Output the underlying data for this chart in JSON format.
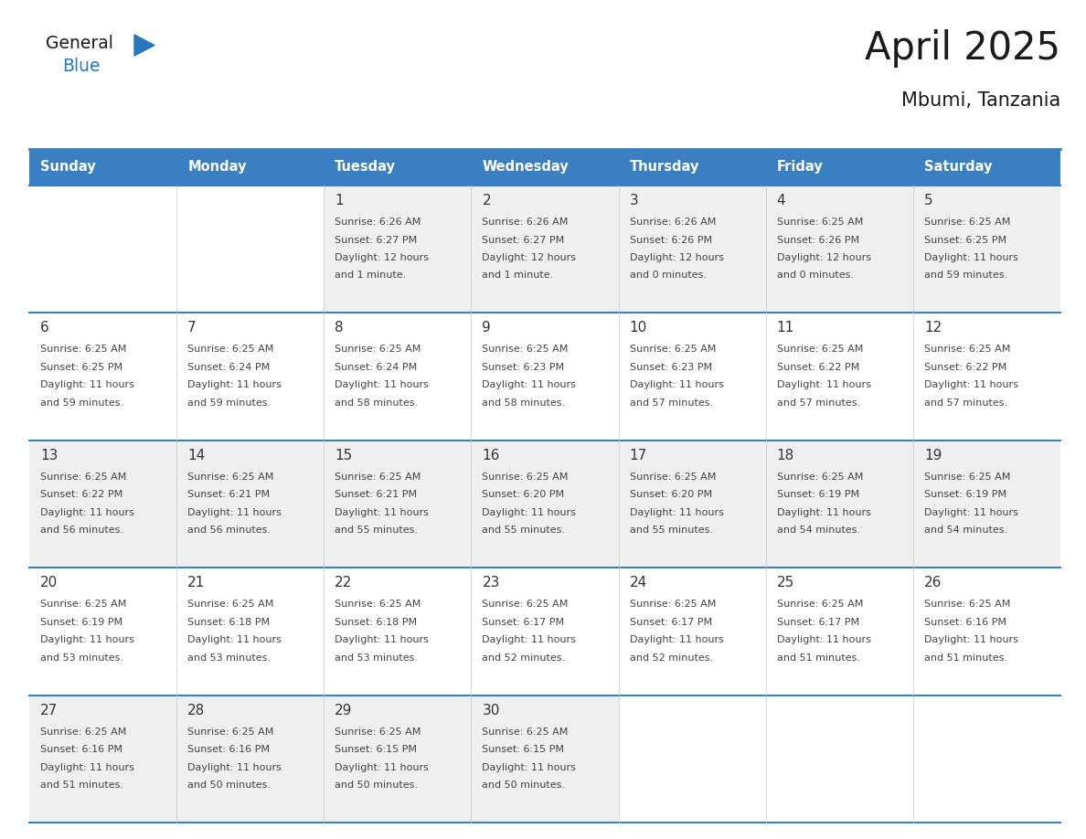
{
  "title": "April 2025",
  "subtitle": "Mbumi, Tanzania",
  "days_of_week": [
    "Sunday",
    "Monday",
    "Tuesday",
    "Wednesday",
    "Thursday",
    "Friday",
    "Saturday"
  ],
  "header_bg": "#3A7FC1",
  "header_text": "#FFFFFF",
  "cell_bg_white": "#FFFFFF",
  "cell_bg_gray": "#EFEFEF",
  "border_color": "#3A7FC1",
  "text_color": "#444444",
  "day_num_color": "#333333",
  "calendar_data": [
    [
      {
        "day": null,
        "sunrise": null,
        "sunset": null,
        "daylight_line1": null,
        "daylight_line2": null
      },
      {
        "day": null,
        "sunrise": null,
        "sunset": null,
        "daylight_line1": null,
        "daylight_line2": null
      },
      {
        "day": 1,
        "sunrise": "6:26 AM",
        "sunset": "6:27 PM",
        "daylight_line1": "Daylight: 12 hours",
        "daylight_line2": "and 1 minute."
      },
      {
        "day": 2,
        "sunrise": "6:26 AM",
        "sunset": "6:27 PM",
        "daylight_line1": "Daylight: 12 hours",
        "daylight_line2": "and 1 minute."
      },
      {
        "day": 3,
        "sunrise": "6:26 AM",
        "sunset": "6:26 PM",
        "daylight_line1": "Daylight: 12 hours",
        "daylight_line2": "and 0 minutes."
      },
      {
        "day": 4,
        "sunrise": "6:25 AM",
        "sunset": "6:26 PM",
        "daylight_line1": "Daylight: 12 hours",
        "daylight_line2": "and 0 minutes."
      },
      {
        "day": 5,
        "sunrise": "6:25 AM",
        "sunset": "6:25 PM",
        "daylight_line1": "Daylight: 11 hours",
        "daylight_line2": "and 59 minutes."
      }
    ],
    [
      {
        "day": 6,
        "sunrise": "6:25 AM",
        "sunset": "6:25 PM",
        "daylight_line1": "Daylight: 11 hours",
        "daylight_line2": "and 59 minutes."
      },
      {
        "day": 7,
        "sunrise": "6:25 AM",
        "sunset": "6:24 PM",
        "daylight_line1": "Daylight: 11 hours",
        "daylight_line2": "and 59 minutes."
      },
      {
        "day": 8,
        "sunrise": "6:25 AM",
        "sunset": "6:24 PM",
        "daylight_line1": "Daylight: 11 hours",
        "daylight_line2": "and 58 minutes."
      },
      {
        "day": 9,
        "sunrise": "6:25 AM",
        "sunset": "6:23 PM",
        "daylight_line1": "Daylight: 11 hours",
        "daylight_line2": "and 58 minutes."
      },
      {
        "day": 10,
        "sunrise": "6:25 AM",
        "sunset": "6:23 PM",
        "daylight_line1": "Daylight: 11 hours",
        "daylight_line2": "and 57 minutes."
      },
      {
        "day": 11,
        "sunrise": "6:25 AM",
        "sunset": "6:22 PM",
        "daylight_line1": "Daylight: 11 hours",
        "daylight_line2": "and 57 minutes."
      },
      {
        "day": 12,
        "sunrise": "6:25 AM",
        "sunset": "6:22 PM",
        "daylight_line1": "Daylight: 11 hours",
        "daylight_line2": "and 57 minutes."
      }
    ],
    [
      {
        "day": 13,
        "sunrise": "6:25 AM",
        "sunset": "6:22 PM",
        "daylight_line1": "Daylight: 11 hours",
        "daylight_line2": "and 56 minutes."
      },
      {
        "day": 14,
        "sunrise": "6:25 AM",
        "sunset": "6:21 PM",
        "daylight_line1": "Daylight: 11 hours",
        "daylight_line2": "and 56 minutes."
      },
      {
        "day": 15,
        "sunrise": "6:25 AM",
        "sunset": "6:21 PM",
        "daylight_line1": "Daylight: 11 hours",
        "daylight_line2": "and 55 minutes."
      },
      {
        "day": 16,
        "sunrise": "6:25 AM",
        "sunset": "6:20 PM",
        "daylight_line1": "Daylight: 11 hours",
        "daylight_line2": "and 55 minutes."
      },
      {
        "day": 17,
        "sunrise": "6:25 AM",
        "sunset": "6:20 PM",
        "daylight_line1": "Daylight: 11 hours",
        "daylight_line2": "and 55 minutes."
      },
      {
        "day": 18,
        "sunrise": "6:25 AM",
        "sunset": "6:19 PM",
        "daylight_line1": "Daylight: 11 hours",
        "daylight_line2": "and 54 minutes."
      },
      {
        "day": 19,
        "sunrise": "6:25 AM",
        "sunset": "6:19 PM",
        "daylight_line1": "Daylight: 11 hours",
        "daylight_line2": "and 54 minutes."
      }
    ],
    [
      {
        "day": 20,
        "sunrise": "6:25 AM",
        "sunset": "6:19 PM",
        "daylight_line1": "Daylight: 11 hours",
        "daylight_line2": "and 53 minutes."
      },
      {
        "day": 21,
        "sunrise": "6:25 AM",
        "sunset": "6:18 PM",
        "daylight_line1": "Daylight: 11 hours",
        "daylight_line2": "and 53 minutes."
      },
      {
        "day": 22,
        "sunrise": "6:25 AM",
        "sunset": "6:18 PM",
        "daylight_line1": "Daylight: 11 hours",
        "daylight_line2": "and 53 minutes."
      },
      {
        "day": 23,
        "sunrise": "6:25 AM",
        "sunset": "6:17 PM",
        "daylight_line1": "Daylight: 11 hours",
        "daylight_line2": "and 52 minutes."
      },
      {
        "day": 24,
        "sunrise": "6:25 AM",
        "sunset": "6:17 PM",
        "daylight_line1": "Daylight: 11 hours",
        "daylight_line2": "and 52 minutes."
      },
      {
        "day": 25,
        "sunrise": "6:25 AM",
        "sunset": "6:17 PM",
        "daylight_line1": "Daylight: 11 hours",
        "daylight_line2": "and 51 minutes."
      },
      {
        "day": 26,
        "sunrise": "6:25 AM",
        "sunset": "6:16 PM",
        "daylight_line1": "Daylight: 11 hours",
        "daylight_line2": "and 51 minutes."
      }
    ],
    [
      {
        "day": 27,
        "sunrise": "6:25 AM",
        "sunset": "6:16 PM",
        "daylight_line1": "Daylight: 11 hours",
        "daylight_line2": "and 51 minutes."
      },
      {
        "day": 28,
        "sunrise": "6:25 AM",
        "sunset": "6:16 PM",
        "daylight_line1": "Daylight: 11 hours",
        "daylight_line2": "and 50 minutes."
      },
      {
        "day": 29,
        "sunrise": "6:25 AM",
        "sunset": "6:15 PM",
        "daylight_line1": "Daylight: 11 hours",
        "daylight_line2": "and 50 minutes."
      },
      {
        "day": 30,
        "sunrise": "6:25 AM",
        "sunset": "6:15 PM",
        "daylight_line1": "Daylight: 11 hours",
        "daylight_line2": "and 50 minutes."
      },
      {
        "day": null,
        "sunrise": null,
        "sunset": null,
        "daylight_line1": null,
        "daylight_line2": null
      },
      {
        "day": null,
        "sunrise": null,
        "sunset": null,
        "daylight_line1": null,
        "daylight_line2": null
      },
      {
        "day": null,
        "sunrise": null,
        "sunset": null,
        "daylight_line1": null,
        "daylight_line2": null
      }
    ]
  ],
  "logo_general_color": "#1a1a1a",
  "logo_blue_color": "#2779BD",
  "logo_triangle_color": "#2779BD",
  "row_bg_colors": [
    "#EFEFEF",
    "#FFFFFF",
    "#EFEFEF",
    "#FFFFFF",
    "#EFEFEF"
  ]
}
